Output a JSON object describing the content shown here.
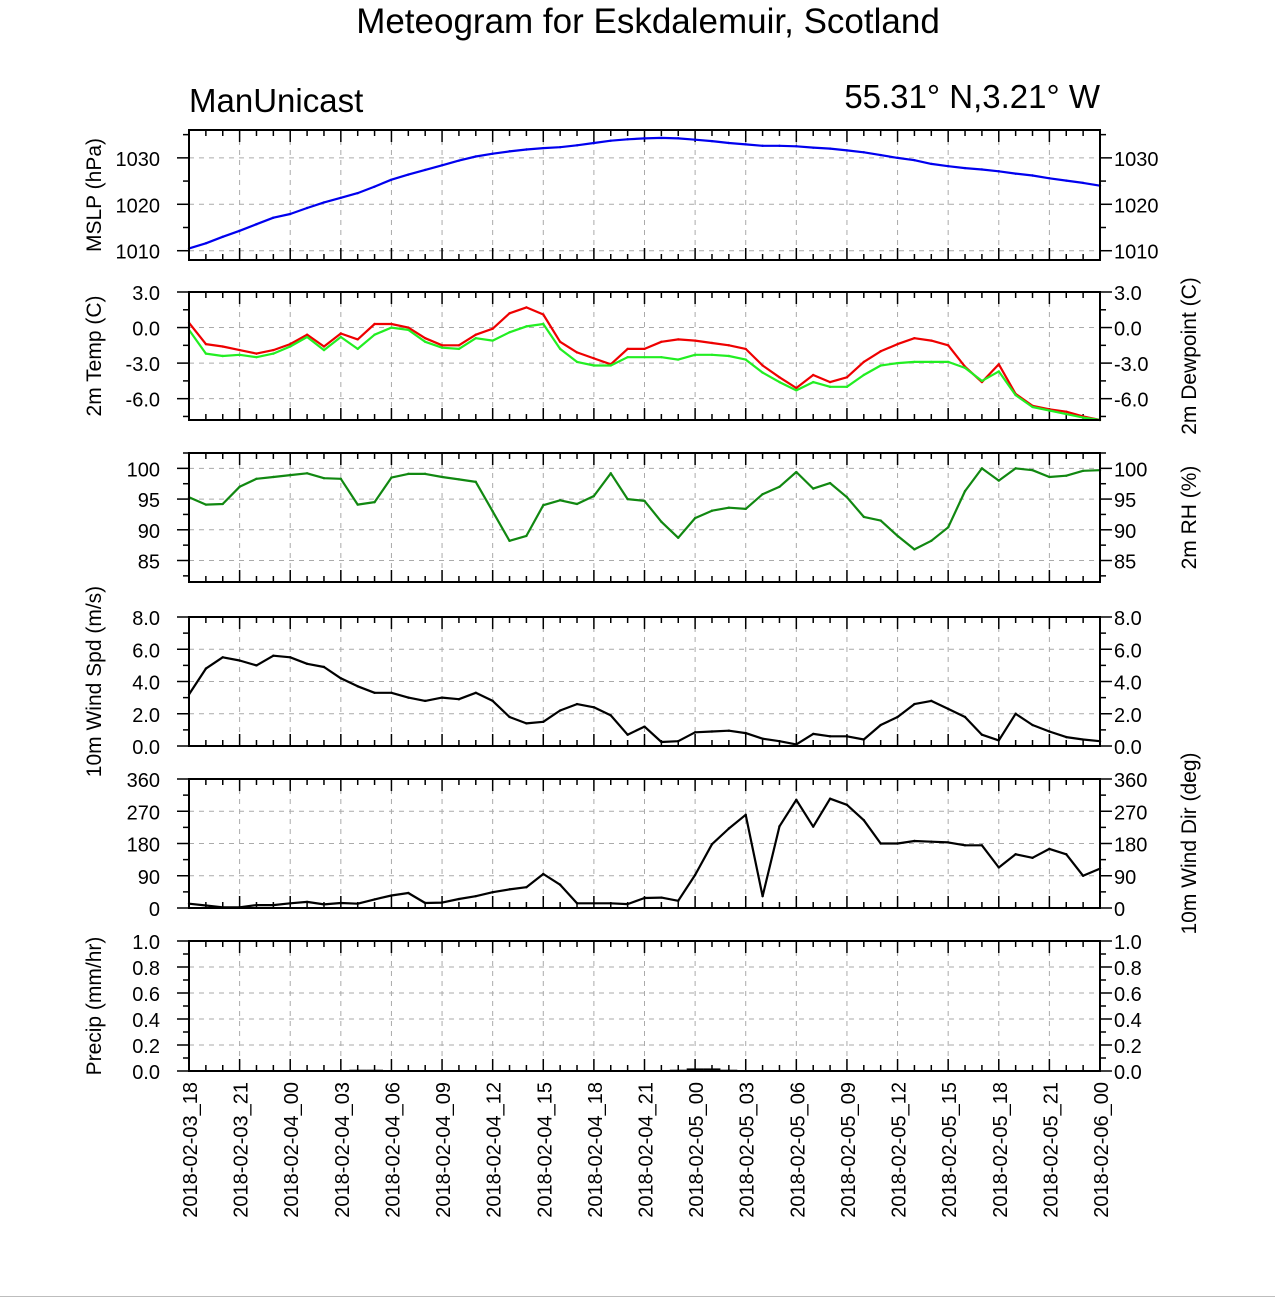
{
  "title": "Meteogram for Eskdalemuir, Scotland",
  "model": "ManUnicast",
  "location": "55.31° N,3.21° W",
  "colors": {
    "mslp": "#0000ee",
    "temp": "#ee0000",
    "dewpoint": "#22ee22",
    "rh": "#118811",
    "wind": "#000000",
    "precip": "#000000",
    "grid": "#aaaaaa"
  },
  "x_labels": [
    "2018-02-03_18",
    "2018-02-03_21",
    "2018-02-04_00",
    "2018-02-04_03",
    "2018-02-04_06",
    "2018-02-04_09",
    "2018-02-04_12",
    "2018-02-04_15",
    "2018-02-04_18",
    "2018-02-04_21",
    "2018-02-05_00",
    "2018-02-05_03",
    "2018-02-05_06",
    "2018-02-05_09",
    "2018-02-05_12",
    "2018-02-05_15",
    "2018-02-05_18",
    "2018-02-05_21",
    "2018-02-06_00"
  ],
  "chart_data": [
    {
      "type": "line",
      "ylabel": "MSLP (hPa)",
      "ylabel_right": "",
      "yticks": [
        1010,
        1020,
        1030
      ],
      "ytick_labels": [
        "1010",
        "1020",
        "1030"
      ],
      "ylim": [
        1008,
        1036
      ],
      "x_hours": [
        0,
        1,
        2,
        3,
        4,
        5,
        6,
        7,
        8,
        9,
        10,
        11,
        12,
        13,
        14,
        15,
        16,
        17,
        18,
        19,
        20,
        21,
        22,
        23,
        24,
        25,
        26,
        27,
        28,
        29,
        30,
        31,
        32,
        33,
        34,
        35,
        36,
        37,
        38,
        39,
        40,
        41,
        42,
        43,
        44,
        45,
        46,
        47,
        48,
        49,
        50,
        51,
        52,
        53,
        54
      ],
      "series": [
        {
          "name": "",
          "color_key": "mslp",
          "values": [
            1010.5,
            1011.6,
            1013.0,
            1014.3,
            1015.7,
            1017.1,
            1017.9,
            1019.2,
            1020.4,
            1021.4,
            1022.4,
            1023.8,
            1025.3,
            1026.4,
            1027.4,
            1028.4,
            1029.4,
            1030.3,
            1030.9,
            1031.4,
            1031.8,
            1032.1,
            1032.3,
            1032.7,
            1033.2,
            1033.7,
            1034.0,
            1034.2,
            1034.3,
            1034.2,
            1033.9,
            1033.6,
            1033.2,
            1032.9,
            1032.6,
            1032.6,
            1032.5,
            1032.2,
            1032.0,
            1031.6,
            1031.2,
            1030.6,
            1030.0,
            1029.5,
            1028.7,
            1028.2,
            1027.8,
            1027.5,
            1027.1,
            1026.6,
            1026.2,
            1025.6,
            1025.1,
            1024.6,
            1024.0
          ]
        }
      ]
    },
    {
      "type": "line",
      "ylabel": "2m Temp (C)",
      "ylabel_right": "2m Dewpoint (C)",
      "yticks": [
        -6,
        -3,
        0,
        3
      ],
      "ytick_labels": [
        "-6.0",
        "-3.0",
        "0.0",
        "3.0"
      ],
      "ylim": [
        -7.8,
        3.0
      ],
      "x_hours": [
        0,
        1,
        2,
        3,
        4,
        5,
        6,
        7,
        8,
        9,
        10,
        11,
        12,
        13,
        14,
        15,
        16,
        17,
        18,
        19,
        20,
        21,
        22,
        23,
        24,
        25,
        26,
        27,
        28,
        29,
        30,
        31,
        32,
        33,
        34,
        35,
        36,
        37,
        38,
        39,
        40,
        41,
        42,
        43,
        44,
        45,
        46,
        47,
        48,
        49,
        50,
        51,
        52,
        53,
        54
      ],
      "series": [
        {
          "name": "",
          "color_key": "temp",
          "values": [
            0.4,
            -1.4,
            -1.6,
            -1.9,
            -2.2,
            -1.9,
            -1.4,
            -0.6,
            -1.6,
            -0.5,
            -1.0,
            0.3,
            0.3,
            0.0,
            -0.9,
            -1.5,
            -1.5,
            -0.6,
            -0.1,
            1.2,
            1.7,
            1.1,
            -1.2,
            -2.1,
            -2.6,
            -3.1,
            -1.8,
            -1.8,
            -1.2,
            -1.0,
            -1.1,
            -1.3,
            -1.5,
            -1.8,
            -3.2,
            -4.2,
            -5.1,
            -4.0,
            -4.6,
            -4.2,
            -2.9,
            -2.0,
            -1.4,
            -0.9,
            -1.1,
            -1.5,
            -3.3,
            -4.6,
            -3.1,
            -5.6,
            -6.6,
            -6.9,
            -7.1,
            -7.5,
            -7.8
          ]
        },
        {
          "name": "",
          "color_key": "dewpoint",
          "values": [
            -0.2,
            -2.2,
            -2.4,
            -2.3,
            -2.5,
            -2.2,
            -1.6,
            -0.8,
            -1.9,
            -0.8,
            -1.8,
            -0.6,
            0.0,
            -0.2,
            -1.2,
            -1.7,
            -1.8,
            -0.9,
            -1.1,
            -0.4,
            0.1,
            0.3,
            -1.8,
            -2.9,
            -3.2,
            -3.2,
            -2.5,
            -2.5,
            -2.5,
            -2.7,
            -2.3,
            -2.3,
            -2.4,
            -2.7,
            -3.8,
            -4.6,
            -5.3,
            -4.6,
            -5.0,
            -5.0,
            -4.0,
            -3.2,
            -3.0,
            -2.9,
            -2.9,
            -2.9,
            -3.4,
            -4.5,
            -3.7,
            -5.7,
            -6.7,
            -7.0,
            -7.3,
            -7.6,
            -7.8
          ]
        }
      ]
    },
    {
      "type": "line",
      "ylabel": "",
      "ylabel_right": "2m RH (%)",
      "yticks": [
        85,
        90,
        95,
        100
      ],
      "ytick_labels": [
        "85",
        "90",
        "95",
        "100"
      ],
      "ylim": [
        81.5,
        102.5
      ],
      "x_hours": [
        0,
        1,
        2,
        3,
        4,
        5,
        6,
        7,
        8,
        9,
        10,
        11,
        12,
        13,
        14,
        15,
        16,
        17,
        18,
        19,
        20,
        21,
        22,
        23,
        24,
        25,
        26,
        27,
        28,
        29,
        30,
        31,
        32,
        33,
        34,
        35,
        36,
        37,
        38,
        39,
        40,
        41,
        42,
        43,
        44,
        45,
        46,
        47,
        48,
        49,
        50,
        51,
        52,
        53,
        54
      ],
      "series": [
        {
          "name": "",
          "color_key": "rh",
          "values": [
            95.3,
            94.1,
            94.2,
            97.0,
            98.3,
            98.6,
            98.9,
            99.2,
            98.4,
            98.3,
            94.1,
            94.5,
            98.5,
            99.1,
            99.1,
            98.6,
            98.2,
            97.8,
            93.0,
            88.2,
            89.0,
            94.0,
            94.8,
            94.2,
            95.5,
            99.2,
            95.0,
            94.7,
            91.3,
            88.7,
            91.9,
            93.1,
            93.6,
            93.4,
            95.8,
            97.0,
            99.4,
            96.7,
            97.6,
            95.3,
            92.1,
            91.5,
            89.0,
            86.8,
            88.2,
            90.4,
            96.3,
            100.0,
            98.0,
            100.0,
            99.7,
            98.6,
            98.8,
            99.6,
            99.7
          ]
        }
      ]
    },
    {
      "type": "line",
      "ylabel": "10m Wind Spd (m/s)",
      "ylabel_right": "",
      "yticks": [
        0,
        2,
        4,
        6,
        8
      ],
      "ytick_labels": [
        "0.0",
        "2.0",
        "4.0",
        "6.0",
        "8.0"
      ],
      "ylim": [
        0,
        8
      ],
      "x_hours": [
        0,
        1,
        2,
        3,
        4,
        5,
        6,
        7,
        8,
        9,
        10,
        11,
        12,
        13,
        14,
        15,
        16,
        17,
        18,
        19,
        20,
        21,
        22,
        23,
        24,
        25,
        26,
        27,
        28,
        29,
        30,
        31,
        32,
        33,
        34,
        35,
        36,
        37,
        38,
        39,
        40,
        41,
        42,
        43,
        44,
        45,
        46,
        47,
        48,
        49,
        50,
        51,
        52,
        53,
        54
      ],
      "series": [
        {
          "name": "",
          "color_key": "wind",
          "values": [
            3.2,
            4.8,
            5.5,
            5.3,
            5.0,
            5.6,
            5.5,
            5.1,
            4.9,
            4.2,
            3.7,
            3.3,
            3.3,
            3.0,
            2.8,
            3.0,
            2.9,
            3.3,
            2.8,
            1.8,
            1.4,
            1.5,
            2.2,
            2.6,
            2.4,
            1.9,
            0.7,
            1.2,
            0.25,
            0.3,
            0.85,
            0.9,
            0.95,
            0.8,
            0.45,
            0.3,
            0.1,
            0.75,
            0.6,
            0.6,
            0.4,
            1.3,
            1.8,
            2.6,
            2.8,
            2.3,
            1.8,
            0.7,
            0.35,
            2.0,
            1.3,
            0.9,
            0.55,
            0.4,
            0.3
          ]
        }
      ]
    },
    {
      "type": "line",
      "ylabel": "",
      "ylabel_right": "10m Wind Dir (deg)",
      "yticks": [
        0,
        90,
        180,
        270,
        360
      ],
      "ytick_labels": [
        "0",
        "90",
        "180",
        "270",
        "360"
      ],
      "ylim": [
        0,
        360
      ],
      "x_hours": [
        0,
        1,
        2,
        3,
        4,
        5,
        6,
        7,
        8,
        9,
        10,
        11,
        12,
        13,
        14,
        15,
        16,
        17,
        18,
        19,
        20,
        21,
        22,
        23,
        24,
        25,
        26,
        27,
        28,
        29,
        30,
        31,
        32,
        33,
        34,
        35,
        36,
        37,
        38,
        39,
        40,
        41,
        42,
        43,
        44,
        45,
        46,
        47,
        48,
        49,
        50,
        51,
        52,
        53,
        54
      ],
      "series": [
        {
          "name": "",
          "color_key": "wind",
          "values": [
            12,
            7,
            2,
            2,
            8,
            8,
            13,
            17,
            10,
            14,
            12,
            24,
            35,
            42,
            14,
            15,
            25,
            33,
            44,
            52,
            58,
            95,
            65,
            13,
            13,
            13,
            11,
            28,
            29,
            20,
            92,
            178,
            222,
            260,
            33,
            228,
            302,
            227,
            305,
            288,
            245,
            180,
            180,
            187,
            185,
            183,
            175,
            175,
            113,
            150,
            140,
            165,
            150,
            90,
            110
          ]
        }
      ]
    },
    {
      "type": "bar",
      "ylabel": "Precip (mm/hr)",
      "ylabel_right": "",
      "yticks": [
        0,
        0.2,
        0.4,
        0.6,
        0.8,
        1.0
      ],
      "ytick_labels": [
        "0.0",
        "0.2",
        "0.4",
        "0.6",
        "0.8",
        "1.0"
      ],
      "ylim": [
        0,
        1
      ],
      "x_hours": [
        10,
        11,
        29,
        30,
        31,
        32
      ],
      "series": [
        {
          "name": "",
          "color_key": "precip",
          "values": [
            0.01,
            0.01,
            0.01,
            0.02,
            0.02,
            0.01
          ]
        }
      ]
    }
  ]
}
